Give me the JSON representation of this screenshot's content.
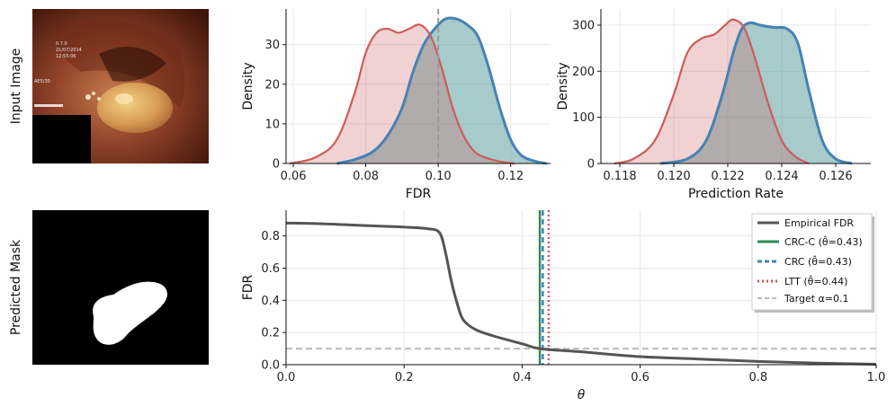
{
  "row_labels": {
    "input": "Input Image",
    "mask": "Predicted Mask"
  },
  "images": {
    "input": "colonoscopy-frame",
    "mask": "binary-segmentation-mask",
    "overlay_text": [
      "0.7.0",
      "21/07/2014",
      "12:55:06",
      "AE5/30"
    ]
  },
  "colors": {
    "red": "#cd5c5c",
    "teal": "#4682b4",
    "tealfill": "#5f9ea0",
    "dark": "#555555",
    "green": "#2e8b57",
    "gray": "#bbbbbb"
  },
  "chart_data": [
    {
      "id": "fdr_density",
      "type": "area",
      "xlabel": "FDR",
      "ylabel": "Density",
      "xlim": [
        0.058,
        0.131
      ],
      "ylim": [
        0,
        39
      ],
      "xticks": [
        "0.06",
        "0.08",
        "0.10",
        "0.12"
      ],
      "xtick_values": [
        0.06,
        0.08,
        0.1,
        0.12
      ],
      "yticks": [
        "0",
        "10",
        "20",
        "30"
      ],
      "ytick_values": [
        0,
        10,
        20,
        30
      ],
      "vline": 0.1,
      "series": [
        {
          "name": "red",
          "x": [
            0.059,
            0.066,
            0.072,
            0.077,
            0.08,
            0.083,
            0.086,
            0.089,
            0.092,
            0.095,
            0.098,
            0.101,
            0.104,
            0.107,
            0.11,
            0.113,
            0.117,
            0.121
          ],
          "y": [
            0,
            1.5,
            6,
            18,
            28,
            33,
            34,
            33,
            34,
            35,
            32,
            24,
            14,
            7,
            3,
            1.5,
            0.5,
            0
          ]
        },
        {
          "name": "teal",
          "x": [
            0.072,
            0.077,
            0.082,
            0.086,
            0.09,
            0.093,
            0.096,
            0.099,
            0.102,
            0.105,
            0.108,
            0.111,
            0.114,
            0.117,
            0.12,
            0.123,
            0.127,
            0.13
          ],
          "y": [
            0,
            1,
            3,
            7,
            14,
            23,
            30,
            34,
            36.5,
            36.5,
            35,
            32,
            24,
            14,
            6,
            2,
            0.5,
            0
          ]
        }
      ]
    },
    {
      "id": "rate_density",
      "type": "area",
      "xlabel": "Prediction Rate",
      "ylabel": "Density",
      "xlim": [
        0.1173,
        0.1273
      ],
      "ylim": [
        0,
        335
      ],
      "xticks": [
        "0.118",
        "0.120",
        "0.122",
        "0.124",
        "0.126"
      ],
      "xtick_values": [
        0.118,
        0.12,
        0.122,
        0.124,
        0.126
      ],
      "yticks": [
        "0",
        "100",
        "200",
        "300"
      ],
      "ytick_values": [
        0,
        100,
        200,
        300
      ],
      "series": [
        {
          "name": "red",
          "x": [
            0.1178,
            0.1185,
            0.1193,
            0.12,
            0.1205,
            0.121,
            0.1215,
            0.1219,
            0.1222,
            0.1226,
            0.123,
            0.1235,
            0.124,
            0.1245,
            0.125
          ],
          "y": [
            0,
            10,
            50,
            150,
            240,
            270,
            280,
            300,
            312,
            295,
            230,
            130,
            50,
            15,
            0
          ]
        },
        {
          "name": "teal",
          "x": [
            0.1195,
            0.1205,
            0.1212,
            0.1218,
            0.1222,
            0.1225,
            0.1228,
            0.1232,
            0.1237,
            0.1242,
            0.1246,
            0.125,
            0.1255,
            0.126,
            0.1266
          ],
          "y": [
            0,
            10,
            50,
            150,
            240,
            290,
            305,
            300,
            295,
            292,
            260,
            160,
            50,
            10,
            0
          ]
        }
      ]
    },
    {
      "id": "fdr_curve",
      "type": "line",
      "xlabel": "θ",
      "ylabel": "FDR",
      "xlim": [
        0,
        1
      ],
      "ylim": [
        0,
        0.96
      ],
      "xticks": [
        "0.0",
        "0.2",
        "0.4",
        "0.6",
        "0.8",
        "1.0"
      ],
      "xtick_values": [
        0,
        0.2,
        0.4,
        0.6,
        0.8,
        1.0
      ],
      "yticks": [
        "0.0",
        "0.2",
        "0.4",
        "0.6",
        "0.8"
      ],
      "ytick_values": [
        0,
        0.2,
        0.4,
        0.6,
        0.8
      ],
      "series": [
        {
          "name": "Empirical FDR",
          "x": [
            0,
            0.05,
            0.1,
            0.15,
            0.2,
            0.24,
            0.26,
            0.27,
            0.28,
            0.29,
            0.3,
            0.32,
            0.35,
            0.4,
            0.43,
            0.5,
            0.6,
            0.7,
            0.8,
            0.9,
            1.0
          ],
          "y": [
            0.88,
            0.877,
            0.87,
            0.862,
            0.855,
            0.845,
            0.82,
            0.7,
            0.52,
            0.38,
            0.28,
            0.22,
            0.18,
            0.13,
            0.1,
            0.08,
            0.05,
            0.035,
            0.02,
            0.01,
            0.003
          ]
        }
      ],
      "vlines": [
        {
          "name": "CRC-C (θ̂=0.43)",
          "x": 0.43,
          "style": "solid"
        },
        {
          "name": "CRC (θ̂=0.43)",
          "x": 0.435,
          "style": "dashed"
        },
        {
          "name": "LTT (θ̂=0.44)",
          "x": 0.445,
          "style": "dotted"
        }
      ],
      "hline": {
        "name": "Target α=0.1",
        "y": 0.1
      },
      "legend": {
        "placement": "top-right",
        "entries": [
          "Empirical FDR",
          "CRC-C (θ̂=0.43)",
          "CRC (θ̂=0.43)",
          "LTT (θ̂=0.44)",
          "Target α=0.1"
        ]
      }
    }
  ]
}
